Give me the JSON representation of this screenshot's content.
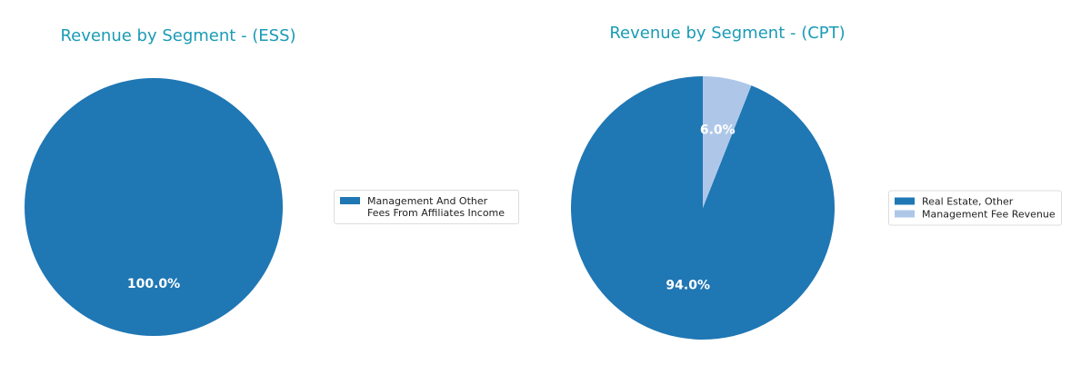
{
  "chart_data": [
    {
      "type": "pie",
      "title": "Revenue by Segment - (ESS)",
      "categories": [
        "Management And Other Fees From Affiliates Income"
      ],
      "values": [
        100
      ],
      "value_labels": [
        "100.0%"
      ],
      "colors": [
        "#1f77b4"
      ]
    },
    {
      "type": "pie",
      "title": "Revenue by Segment - (CPT)",
      "categories": [
        "Real Estate, Other",
        "Management Fee Revenue"
      ],
      "values": [
        94,
        6
      ],
      "value_labels": [
        "94.0%",
        "6.0%"
      ],
      "colors": [
        "#1f77b4",
        "#aec7e8"
      ]
    }
  ]
}
